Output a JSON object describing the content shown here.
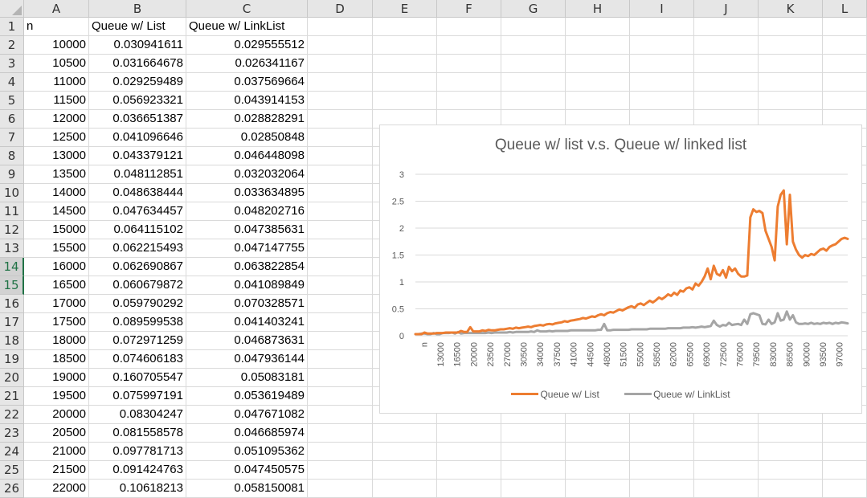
{
  "sheet": {
    "columns": [
      "A",
      "B",
      "C",
      "D",
      "E",
      "F",
      "G",
      "H",
      "I",
      "J",
      "K",
      "L"
    ],
    "selected_rows": [
      14,
      15
    ],
    "header_row": [
      "n",
      "Queue w/ List",
      "Queue w/ LinkList"
    ],
    "rows": [
      [
        "10000",
        "0.030941611",
        "0.029555512"
      ],
      [
        "10500",
        "0.031664678",
        "0.026341167"
      ],
      [
        "11000",
        "0.029259489",
        "0.037569664"
      ],
      [
        "11500",
        "0.056923321",
        "0.043914153"
      ],
      [
        "12000",
        "0.036651387",
        "0.028828291"
      ],
      [
        "12500",
        "0.041096646",
        "0.02850848"
      ],
      [
        "13000",
        "0.043379121",
        "0.046448098"
      ],
      [
        "13500",
        "0.048112851",
        "0.032032064"
      ],
      [
        "14000",
        "0.048638444",
        "0.033634895"
      ],
      [
        "14500",
        "0.047634457",
        "0.048202716"
      ],
      [
        "15000",
        "0.064115102",
        "0.047385631"
      ],
      [
        "15500",
        "0.062215493",
        "0.047147755"
      ],
      [
        "16000",
        "0.062690867",
        "0.063822854"
      ],
      [
        "16500",
        "0.060679872",
        "0.041089849"
      ],
      [
        "17000",
        "0.059790292",
        "0.070328571"
      ],
      [
        "17500",
        "0.089599538",
        "0.041403241"
      ],
      [
        "18000",
        "0.072971259",
        "0.046873631"
      ],
      [
        "18500",
        "0.074606183",
        "0.047936144"
      ],
      [
        "19000",
        "0.160705547",
        "0.05083181"
      ],
      [
        "19500",
        "0.075997191",
        "0.053619489"
      ],
      [
        "20000",
        "0.08304247",
        "0.047671082"
      ],
      [
        "20500",
        "0.081558578",
        "0.046685974"
      ],
      [
        "21000",
        "0.097781713",
        "0.051095362"
      ],
      [
        "21500",
        "0.091424763",
        "0.047450575"
      ],
      [
        "22000",
        "0.10618213",
        "0.058150081"
      ]
    ]
  },
  "chart_data": {
    "type": "line",
    "title": "Queue w/ list v.s. Queue w/ linked list",
    "ylim": [
      0,
      3
    ],
    "yticks": [
      "0",
      "0.5",
      "1",
      "1.5",
      "2",
      "2.5",
      "3"
    ],
    "x_tick_labels": [
      "n",
      "13000",
      "16500",
      "20000",
      "23500",
      "27000",
      "30500",
      "34000",
      "37500",
      "41000",
      "44500",
      "48000",
      "51500",
      "55000",
      "58500",
      "62000",
      "65500",
      "69000",
      "72500",
      "76000",
      "79500",
      "83000",
      "86500",
      "90000",
      "93500",
      "97000"
    ],
    "grid": true,
    "legend_position": "bottom",
    "series": [
      {
        "name": "Queue w/ List",
        "color": "#ed7d31",
        "values": [
          0.03,
          0.03,
          0.03,
          0.06,
          0.04,
          0.04,
          0.04,
          0.05,
          0.05,
          0.05,
          0.06,
          0.06,
          0.06,
          0.06,
          0.06,
          0.09,
          0.07,
          0.07,
          0.16,
          0.08,
          0.08,
          0.08,
          0.1,
          0.09,
          0.11,
          0.1,
          0.1,
          0.11,
          0.12,
          0.12,
          0.13,
          0.14,
          0.13,
          0.15,
          0.14,
          0.15,
          0.16,
          0.17,
          0.16,
          0.18,
          0.19,
          0.2,
          0.19,
          0.21,
          0.22,
          0.21,
          0.23,
          0.24,
          0.25,
          0.27,
          0.26,
          0.28,
          0.29,
          0.3,
          0.31,
          0.33,
          0.32,
          0.34,
          0.36,
          0.35,
          0.38,
          0.4,
          0.38,
          0.42,
          0.44,
          0.43,
          0.46,
          0.49,
          0.47,
          0.5,
          0.53,
          0.55,
          0.52,
          0.58,
          0.6,
          0.57,
          0.61,
          0.65,
          0.62,
          0.66,
          0.71,
          0.68,
          0.72,
          0.77,
          0.74,
          0.8,
          0.76,
          0.84,
          0.82,
          0.88,
          0.9,
          0.86,
          0.97,
          0.93,
          1.0,
          1.1,
          1.25,
          1.05,
          1.3,
          1.15,
          1.12,
          1.22,
          1.08,
          1.28,
          1.2,
          1.25,
          1.15,
          1.1,
          1.1,
          1.12,
          2.2,
          2.35,
          2.3,
          2.32,
          2.28,
          1.95,
          1.8,
          1.65,
          1.4,
          2.4,
          2.62,
          2.7,
          1.7,
          2.62,
          1.75,
          1.6,
          1.5,
          1.45,
          1.5,
          1.48,
          1.52,
          1.5,
          1.55,
          1.6,
          1.62,
          1.58,
          1.65,
          1.68,
          1.7,
          1.75,
          1.8,
          1.82,
          1.8
        ]
      },
      {
        "name": "Queue w/ LinkList",
        "color": "#a5a5a5",
        "values": [
          0.03,
          0.03,
          0.04,
          0.04,
          0.03,
          0.03,
          0.05,
          0.03,
          0.03,
          0.05,
          0.05,
          0.05,
          0.06,
          0.04,
          0.07,
          0.04,
          0.05,
          0.05,
          0.05,
          0.05,
          0.05,
          0.05,
          0.05,
          0.05,
          0.06,
          0.05,
          0.06,
          0.06,
          0.06,
          0.06,
          0.06,
          0.07,
          0.06,
          0.07,
          0.07,
          0.07,
          0.07,
          0.07,
          0.08,
          0.07,
          0.1,
          0.08,
          0.08,
          0.08,
          0.09,
          0.08,
          0.09,
          0.09,
          0.09,
          0.09,
          0.09,
          0.1,
          0.1,
          0.1,
          0.1,
          0.1,
          0.1,
          0.1,
          0.1,
          0.1,
          0.11,
          0.11,
          0.22,
          0.1,
          0.1,
          0.11,
          0.11,
          0.11,
          0.11,
          0.11,
          0.11,
          0.12,
          0.12,
          0.12,
          0.12,
          0.12,
          0.12,
          0.13,
          0.13,
          0.13,
          0.13,
          0.13,
          0.13,
          0.14,
          0.14,
          0.14,
          0.14,
          0.14,
          0.15,
          0.15,
          0.15,
          0.16,
          0.15,
          0.16,
          0.17,
          0.16,
          0.17,
          0.18,
          0.28,
          0.2,
          0.17,
          0.2,
          0.19,
          0.24,
          0.2,
          0.21,
          0.22,
          0.2,
          0.3,
          0.22,
          0.4,
          0.42,
          0.4,
          0.38,
          0.22,
          0.21,
          0.3,
          0.22,
          0.25,
          0.42,
          0.28,
          0.3,
          0.45,
          0.3,
          0.38,
          0.25,
          0.22,
          0.22,
          0.23,
          0.22,
          0.24,
          0.22,
          0.23,
          0.22,
          0.24,
          0.23,
          0.24,
          0.22,
          0.24,
          0.23,
          0.25,
          0.24,
          0.23
        ]
      }
    ]
  }
}
